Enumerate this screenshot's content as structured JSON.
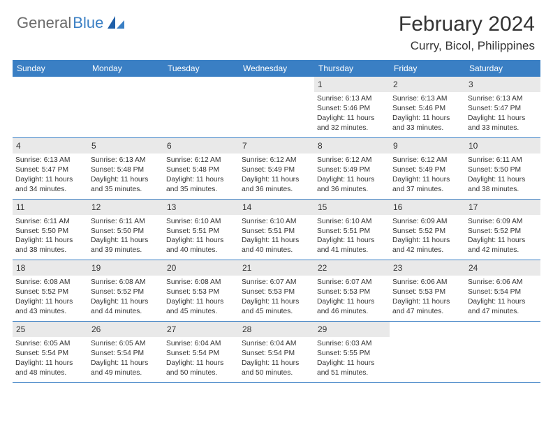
{
  "logo": {
    "text1": "General",
    "text2": "Blue"
  },
  "header": {
    "title": "February 2024",
    "location": "Curry, Bicol, Philippines"
  },
  "colors": {
    "brand": "#3a7fc4",
    "dayBg": "#e9e9e9",
    "text": "#333333"
  },
  "dayNames": [
    "Sunday",
    "Monday",
    "Tuesday",
    "Wednesday",
    "Thursday",
    "Friday",
    "Saturday"
  ],
  "weeks": [
    [
      null,
      null,
      null,
      null,
      {
        "n": "1",
        "sr": "Sunrise: 6:13 AM",
        "ss": "Sunset: 5:46 PM",
        "d1": "Daylight: 11 hours",
        "d2": "and 32 minutes."
      },
      {
        "n": "2",
        "sr": "Sunrise: 6:13 AM",
        "ss": "Sunset: 5:46 PM",
        "d1": "Daylight: 11 hours",
        "d2": "and 33 minutes."
      },
      {
        "n": "3",
        "sr": "Sunrise: 6:13 AM",
        "ss": "Sunset: 5:47 PM",
        "d1": "Daylight: 11 hours",
        "d2": "and 33 minutes."
      }
    ],
    [
      {
        "n": "4",
        "sr": "Sunrise: 6:13 AM",
        "ss": "Sunset: 5:47 PM",
        "d1": "Daylight: 11 hours",
        "d2": "and 34 minutes."
      },
      {
        "n": "5",
        "sr": "Sunrise: 6:13 AM",
        "ss": "Sunset: 5:48 PM",
        "d1": "Daylight: 11 hours",
        "d2": "and 35 minutes."
      },
      {
        "n": "6",
        "sr": "Sunrise: 6:12 AM",
        "ss": "Sunset: 5:48 PM",
        "d1": "Daylight: 11 hours",
        "d2": "and 35 minutes."
      },
      {
        "n": "7",
        "sr": "Sunrise: 6:12 AM",
        "ss": "Sunset: 5:49 PM",
        "d1": "Daylight: 11 hours",
        "d2": "and 36 minutes."
      },
      {
        "n": "8",
        "sr": "Sunrise: 6:12 AM",
        "ss": "Sunset: 5:49 PM",
        "d1": "Daylight: 11 hours",
        "d2": "and 36 minutes."
      },
      {
        "n": "9",
        "sr": "Sunrise: 6:12 AM",
        "ss": "Sunset: 5:49 PM",
        "d1": "Daylight: 11 hours",
        "d2": "and 37 minutes."
      },
      {
        "n": "10",
        "sr": "Sunrise: 6:11 AM",
        "ss": "Sunset: 5:50 PM",
        "d1": "Daylight: 11 hours",
        "d2": "and 38 minutes."
      }
    ],
    [
      {
        "n": "11",
        "sr": "Sunrise: 6:11 AM",
        "ss": "Sunset: 5:50 PM",
        "d1": "Daylight: 11 hours",
        "d2": "and 38 minutes."
      },
      {
        "n": "12",
        "sr": "Sunrise: 6:11 AM",
        "ss": "Sunset: 5:50 PM",
        "d1": "Daylight: 11 hours",
        "d2": "and 39 minutes."
      },
      {
        "n": "13",
        "sr": "Sunrise: 6:10 AM",
        "ss": "Sunset: 5:51 PM",
        "d1": "Daylight: 11 hours",
        "d2": "and 40 minutes."
      },
      {
        "n": "14",
        "sr": "Sunrise: 6:10 AM",
        "ss": "Sunset: 5:51 PM",
        "d1": "Daylight: 11 hours",
        "d2": "and 40 minutes."
      },
      {
        "n": "15",
        "sr": "Sunrise: 6:10 AM",
        "ss": "Sunset: 5:51 PM",
        "d1": "Daylight: 11 hours",
        "d2": "and 41 minutes."
      },
      {
        "n": "16",
        "sr": "Sunrise: 6:09 AM",
        "ss": "Sunset: 5:52 PM",
        "d1": "Daylight: 11 hours",
        "d2": "and 42 minutes."
      },
      {
        "n": "17",
        "sr": "Sunrise: 6:09 AM",
        "ss": "Sunset: 5:52 PM",
        "d1": "Daylight: 11 hours",
        "d2": "and 42 minutes."
      }
    ],
    [
      {
        "n": "18",
        "sr": "Sunrise: 6:08 AM",
        "ss": "Sunset: 5:52 PM",
        "d1": "Daylight: 11 hours",
        "d2": "and 43 minutes."
      },
      {
        "n": "19",
        "sr": "Sunrise: 6:08 AM",
        "ss": "Sunset: 5:52 PM",
        "d1": "Daylight: 11 hours",
        "d2": "and 44 minutes."
      },
      {
        "n": "20",
        "sr": "Sunrise: 6:08 AM",
        "ss": "Sunset: 5:53 PM",
        "d1": "Daylight: 11 hours",
        "d2": "and 45 minutes."
      },
      {
        "n": "21",
        "sr": "Sunrise: 6:07 AM",
        "ss": "Sunset: 5:53 PM",
        "d1": "Daylight: 11 hours",
        "d2": "and 45 minutes."
      },
      {
        "n": "22",
        "sr": "Sunrise: 6:07 AM",
        "ss": "Sunset: 5:53 PM",
        "d1": "Daylight: 11 hours",
        "d2": "and 46 minutes."
      },
      {
        "n": "23",
        "sr": "Sunrise: 6:06 AM",
        "ss": "Sunset: 5:53 PM",
        "d1": "Daylight: 11 hours",
        "d2": "and 47 minutes."
      },
      {
        "n": "24",
        "sr": "Sunrise: 6:06 AM",
        "ss": "Sunset: 5:54 PM",
        "d1": "Daylight: 11 hours",
        "d2": "and 47 minutes."
      }
    ],
    [
      {
        "n": "25",
        "sr": "Sunrise: 6:05 AM",
        "ss": "Sunset: 5:54 PM",
        "d1": "Daylight: 11 hours",
        "d2": "and 48 minutes."
      },
      {
        "n": "26",
        "sr": "Sunrise: 6:05 AM",
        "ss": "Sunset: 5:54 PM",
        "d1": "Daylight: 11 hours",
        "d2": "and 49 minutes."
      },
      {
        "n": "27",
        "sr": "Sunrise: 6:04 AM",
        "ss": "Sunset: 5:54 PM",
        "d1": "Daylight: 11 hours",
        "d2": "and 50 minutes."
      },
      {
        "n": "28",
        "sr": "Sunrise: 6:04 AM",
        "ss": "Sunset: 5:54 PM",
        "d1": "Daylight: 11 hours",
        "d2": "and 50 minutes."
      },
      {
        "n": "29",
        "sr": "Sunrise: 6:03 AM",
        "ss": "Sunset: 5:55 PM",
        "d1": "Daylight: 11 hours",
        "d2": "and 51 minutes."
      },
      null,
      null
    ]
  ]
}
